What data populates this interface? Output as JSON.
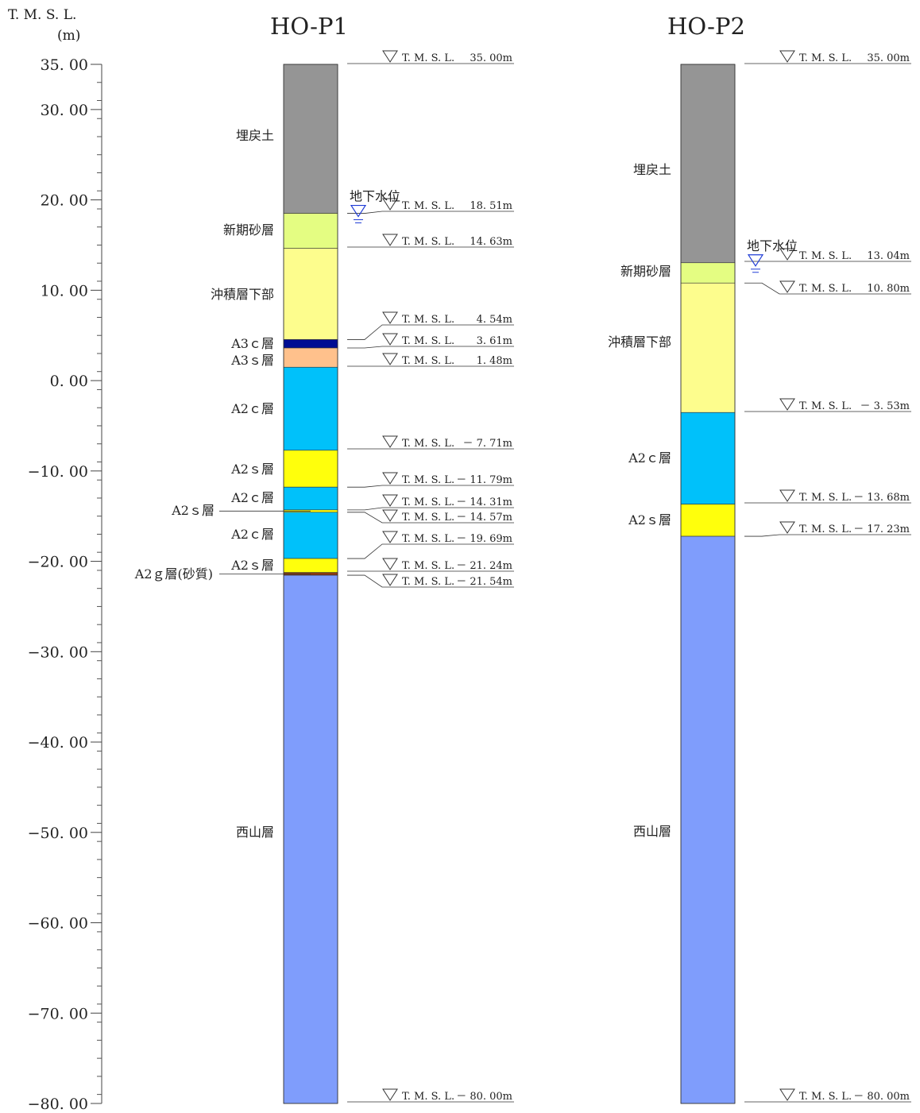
{
  "axis": {
    "title_line1": "T. M. S. L.",
    "title_line2": "(m)",
    "ticks": [
      "35. 00",
      "30. 00",
      "20. 00",
      "10. 00",
      "0. 00",
      "−10. 00",
      "−20. 00",
      "−30. 00",
      "−40. 00",
      "−50. 00",
      "−60. 00",
      "−70. 00",
      "−80. 00"
    ],
    "tick_values": [
      35,
      30,
      20,
      10,
      0,
      -10,
      -20,
      -30,
      -40,
      -50,
      -60,
      -70,
      -80
    ],
    "range": [
      35,
      -80
    ]
  },
  "water_table_label": "地下水位",
  "chart_data": {
    "type": "table",
    "unit": "T.M.S.L. (m)",
    "boreholes": [
      {
        "name": "HO-P1",
        "top": 35.0,
        "bottom": -80.0,
        "water_level": 18.51,
        "layers": [
          {
            "name": "埋戻土",
            "top": 35.0,
            "bottom": 18.51,
            "color": "#959595"
          },
          {
            "name": "新期砂層",
            "top": 18.51,
            "bottom": 14.63,
            "color": "#e4fd82"
          },
          {
            "name": "沖積層下部",
            "top": 14.63,
            "bottom": 4.54,
            "color": "#fdfd8d"
          },
          {
            "name": "A3ｃ層",
            "top": 4.54,
            "bottom": 3.61,
            "color": "#000d93"
          },
          {
            "name": "A3ｓ層",
            "top": 3.61,
            "bottom": 1.48,
            "color": "#ffc18c"
          },
          {
            "name": "A2ｃ層",
            "top": 1.48,
            "bottom": -7.71,
            "color": "#00c1fa"
          },
          {
            "name": "A2ｓ層",
            "top": -7.71,
            "bottom": -11.79,
            "color": "#ffff0c"
          },
          {
            "name": "A2ｃ層",
            "top": -11.79,
            "bottom": -14.31,
            "color": "#00c1fa"
          },
          {
            "name": "A2ｓ層",
            "top": -14.31,
            "bottom": -14.57,
            "color": "#ffff0c"
          },
          {
            "name": "A2ｃ層",
            "top": -14.57,
            "bottom": -19.69,
            "color": "#00c1fa"
          },
          {
            "name": "A2ｓ層",
            "top": -19.69,
            "bottom": -21.24,
            "color": "#ffff0c"
          },
          {
            "name": "A2ｇ層(砂質)",
            "top": -21.24,
            "bottom": -21.54,
            "color": "#8b3a10"
          },
          {
            "name": "西山層",
            "top": -21.54,
            "bottom": -80.0,
            "color": "#7f9dfc"
          }
        ],
        "elevation_labels": [
          {
            "value": 35.0,
            "text": "35. 00m"
          },
          {
            "value": 18.51,
            "text": "18. 51m"
          },
          {
            "value": 14.63,
            "text": "14. 63m"
          },
          {
            "value": 4.54,
            "text": "4. 54m"
          },
          {
            "value": 3.61,
            "text": "3. 61m"
          },
          {
            "value": 1.48,
            "text": "1. 48m"
          },
          {
            "value": -7.71,
            "text": "－ 7. 71m"
          },
          {
            "value": -11.79,
            "text": "－ 11. 79m"
          },
          {
            "value": -14.31,
            "text": "－ 14. 31m"
          },
          {
            "value": -14.57,
            "text": "－ 14. 57m"
          },
          {
            "value": -19.69,
            "text": "－ 19. 69m"
          },
          {
            "value": -21.24,
            "text": "－ 21. 24m"
          },
          {
            "value": -21.54,
            "text": "－ 21. 54m"
          },
          {
            "value": -80.0,
            "text": "－ 80. 00m"
          }
        ],
        "elevation_prefix": "T. M. S. L."
      },
      {
        "name": "HO-P2",
        "top": 35.0,
        "bottom": -80.0,
        "water_level": 13.04,
        "layers": [
          {
            "name": "埋戻土",
            "top": 35.0,
            "bottom": 13.04,
            "color": "#959595"
          },
          {
            "name": "新期砂層",
            "top": 13.04,
            "bottom": 10.8,
            "color": "#e4fd82"
          },
          {
            "name": "沖積層下部",
            "top": 10.8,
            "bottom": -3.53,
            "color": "#fdfd8d"
          },
          {
            "name": "A2ｃ層",
            "top": -3.53,
            "bottom": -13.68,
            "color": "#00c1fa"
          },
          {
            "name": "A2ｓ層",
            "top": -13.68,
            "bottom": -17.23,
            "color": "#ffff0c"
          },
          {
            "name": "西山層",
            "top": -17.23,
            "bottom": -80.0,
            "color": "#7f9dfc"
          }
        ],
        "elevation_labels": [
          {
            "value": 35.0,
            "text": "35. 00m"
          },
          {
            "value": 13.04,
            "text": "13. 04m"
          },
          {
            "value": 10.8,
            "text": "10. 80m"
          },
          {
            "value": -3.53,
            "text": "－ 3. 53m"
          },
          {
            "value": -13.68,
            "text": "－ 13. 68m"
          },
          {
            "value": -17.23,
            "text": "－ 17. 23m"
          },
          {
            "value": -80.0,
            "text": "－ 80. 00m"
          }
        ],
        "elevation_prefix": "T. M. S. L."
      }
    ]
  }
}
